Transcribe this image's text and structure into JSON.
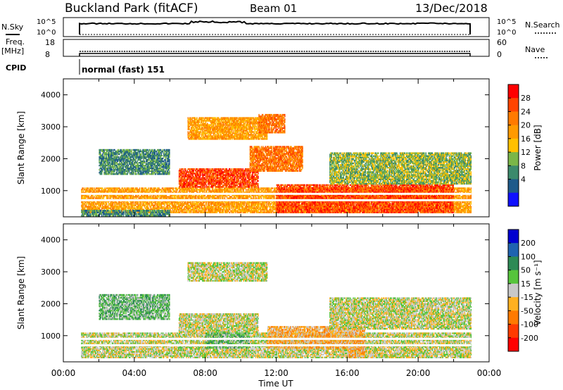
{
  "header": {
    "site": "Buckland Park (fitACF)",
    "beam": "Beam 01",
    "date": "13/Dec/2018"
  },
  "aux": {
    "nsky_label": "N.Sky",
    "nsearch_label": "N.Search",
    "freq_label_1": "Freq.",
    "freq_label_2": "[MHz]",
    "nave_label": "Nave",
    "cpid_label": "CPID",
    "cpid_value": "normal (fast) 151",
    "nsky_ticks": [
      "10^5",
      "10^0"
    ],
    "nsearch_ticks": [
      "10^5",
      "10^0"
    ],
    "freq_ticks": [
      "18",
      "8"
    ],
    "nave_ticks": [
      "60",
      "0"
    ]
  },
  "colorbars": {
    "power": {
      "label": "Power [dB]",
      "ticks": [
        "28",
        "24",
        "20",
        "16",
        "12",
        "8",
        "4"
      ],
      "colors": [
        "#ff0000",
        "#ff4400",
        "#ff7a00",
        "#ff9a00",
        "#ffc000",
        "#7ab648",
        "#3c8a6c",
        "#1e5a8a",
        "#1010ff"
      ]
    },
    "velocity": {
      "label": "Velocity [m s⁻¹]",
      "ticks": [
        "200",
        "100",
        "50",
        "15",
        "-15",
        "-50",
        "-100",
        "-200"
      ],
      "colors": [
        "#0000d0",
        "#1f63b0",
        "#2d8a55",
        "#56c43c",
        "#c8c8c8",
        "#ffb020",
        "#ff7a00",
        "#ff3a00",
        "#ff0000"
      ]
    }
  },
  "chart_data": [
    {
      "type": "heatmap",
      "title": "Power",
      "ylabel": "Slant Range [km]",
      "xlabel": "Time UT",
      "xlim_hours": [
        0,
        24
      ],
      "ylim_km": [
        180,
        4500
      ],
      "yticks": [
        "1000",
        "2000",
        "3000",
        "4000"
      ],
      "xticks": [
        "00:00",
        "04:00",
        "08:00",
        "12:00",
        "16:00",
        "20:00",
        "00:00"
      ],
      "regions": [
        {
          "t0": 1.0,
          "t1": 23.0,
          "r0": 300,
          "r1": 1100,
          "level": 3
        },
        {
          "t0": 6.5,
          "t1": 11.0,
          "r0": 1100,
          "r1": 1700,
          "level": 1
        },
        {
          "t0": 10.5,
          "t1": 13.5,
          "r0": 1600,
          "r1": 2400,
          "level": 2
        },
        {
          "t0": 12.0,
          "t1": 22.0,
          "r0": 300,
          "r1": 1200,
          "level": 1
        },
        {
          "t0": 7.0,
          "t1": 11.5,
          "r0": 2600,
          "r1": 3300,
          "level": 3
        },
        {
          "t0": 11.0,
          "t1": 12.5,
          "r0": 2800,
          "r1": 3400,
          "level": 2
        },
        {
          "t0": 2.0,
          "t1": 6.0,
          "r0": 1500,
          "r1": 2300,
          "level": 6
        },
        {
          "t0": 15.0,
          "t1": 23.0,
          "r0": 1200,
          "r1": 2200,
          "level": 5
        },
        {
          "t0": 1.0,
          "t1": 6.0,
          "r0": 200,
          "r1": 400,
          "level": 6
        }
      ]
    },
    {
      "type": "heatmap",
      "title": "Velocity",
      "ylabel": "Slant Range [km]",
      "xlabel": "Time UT",
      "xlim_hours": [
        0,
        24
      ],
      "ylim_km": [
        180,
        4500
      ],
      "yticks": [
        "1000",
        "2000",
        "3000",
        "4000"
      ],
      "xticks": [
        "00:00",
        "04:00",
        "08:00",
        "12:00",
        "16:00",
        "20:00",
        "00:00"
      ],
      "regions": [
        {
          "t0": 1.0,
          "t1": 23.0,
          "r0": 300,
          "r1": 1100,
          "level": 4
        },
        {
          "t0": 6.5,
          "t1": 11.0,
          "r0": 1100,
          "r1": 1700,
          "level": 4
        },
        {
          "t0": 11.5,
          "t1": 17.0,
          "r0": 600,
          "r1": 1300,
          "level": 5
        },
        {
          "t0": 8.0,
          "t1": 10.5,
          "r0": 600,
          "r1": 1100,
          "level": 3
        },
        {
          "t0": 16.0,
          "t1": 17.0,
          "r0": 300,
          "r1": 700,
          "level": 5
        },
        {
          "t0": 7.0,
          "t1": 11.5,
          "r0": 2700,
          "r1": 3300,
          "level": 4
        },
        {
          "t0": 2.0,
          "t1": 6.0,
          "r0": 1500,
          "r1": 2300,
          "level": 3
        },
        {
          "t0": 15.0,
          "t1": 23.0,
          "r0": 1200,
          "r1": 2200,
          "level": 4
        }
      ]
    }
  ]
}
